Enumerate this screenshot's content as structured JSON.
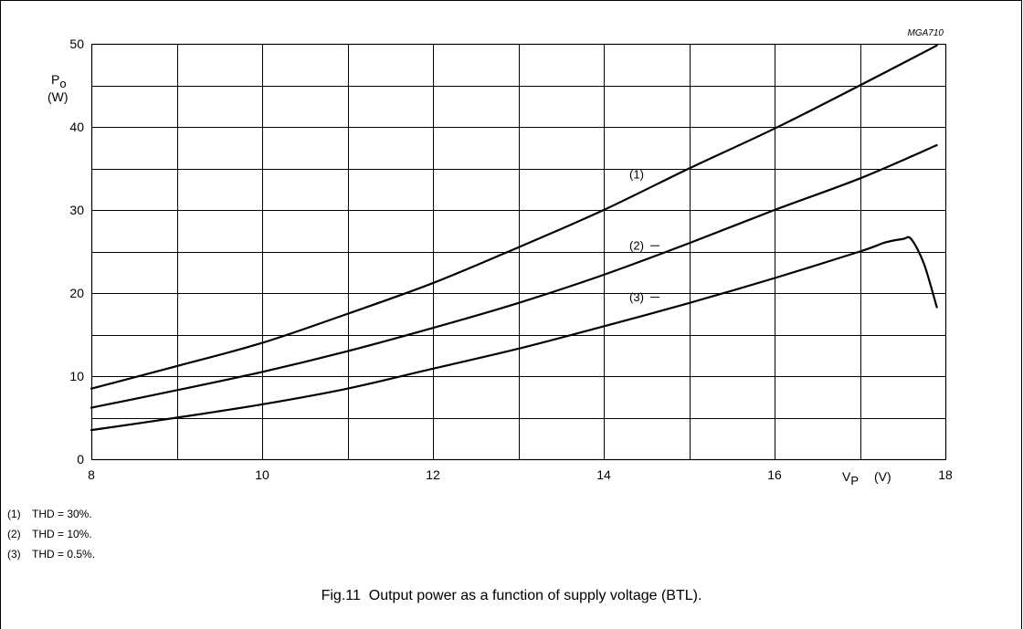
{
  "chart_data": {
    "type": "line",
    "figure_id": "MGA710",
    "ylabel_main": "P",
    "ylabel_sub": "o",
    "ylabel_unit": "(W)",
    "xlabel_main": "V",
    "xlabel_sub": "P",
    "xlabel_unit": "(V)",
    "xlim": [
      8,
      18
    ],
    "ylim": [
      0,
      50
    ],
    "x_ticks": [
      8,
      10,
      12,
      14,
      16,
      18
    ],
    "y_ticks": [
      0,
      10,
      20,
      30,
      40,
      50
    ],
    "x_grid_step": 1,
    "y_grid_step": 5,
    "grid": true,
    "series": [
      {
        "name": "(1)",
        "x": [
          8,
          9,
          10,
          11,
          12,
          13,
          14,
          15,
          16,
          17,
          17.9
        ],
        "y": [
          8.5,
          11.2,
          14.0,
          17.5,
          21.2,
          25.5,
          30.0,
          35.0,
          39.8,
          45.0,
          49.8
        ]
      },
      {
        "name": "(2)",
        "x": [
          8,
          9,
          10,
          11,
          12,
          13,
          14,
          15,
          16,
          17,
          17.9
        ],
        "y": [
          6.2,
          8.3,
          10.5,
          13.0,
          15.8,
          18.8,
          22.2,
          26.0,
          30.0,
          33.8,
          37.8
        ]
      },
      {
        "name": "(3)",
        "x": [
          8,
          9,
          10,
          11,
          12,
          13,
          14,
          15,
          16,
          17,
          17.3,
          17.5,
          17.6,
          17.75,
          17.9
        ],
        "y": [
          3.5,
          5.0,
          6.6,
          8.5,
          10.9,
          13.3,
          16.0,
          18.8,
          21.8,
          25.0,
          26.1,
          26.5,
          26.5,
          23.5,
          18.3
        ]
      }
    ],
    "series_labels": [
      {
        "text": "(1)",
        "x": 14.3,
        "y": 33.8,
        "leader": false
      },
      {
        "text": "(2)",
        "x": 14.3,
        "y": 25.2,
        "leader": true
      },
      {
        "text": "(3)",
        "x": 14.3,
        "y": 19.0,
        "leader": true
      }
    ]
  },
  "notes": [
    {
      "num": "(1)",
      "text": "THD = 30%."
    },
    {
      "num": "(2)",
      "text": "THD = 10%."
    },
    {
      "num": "(3)",
      "text": "THD = 0.5%."
    }
  ],
  "caption": "Fig.11  Output power as a function of supply voltage (BTL)."
}
